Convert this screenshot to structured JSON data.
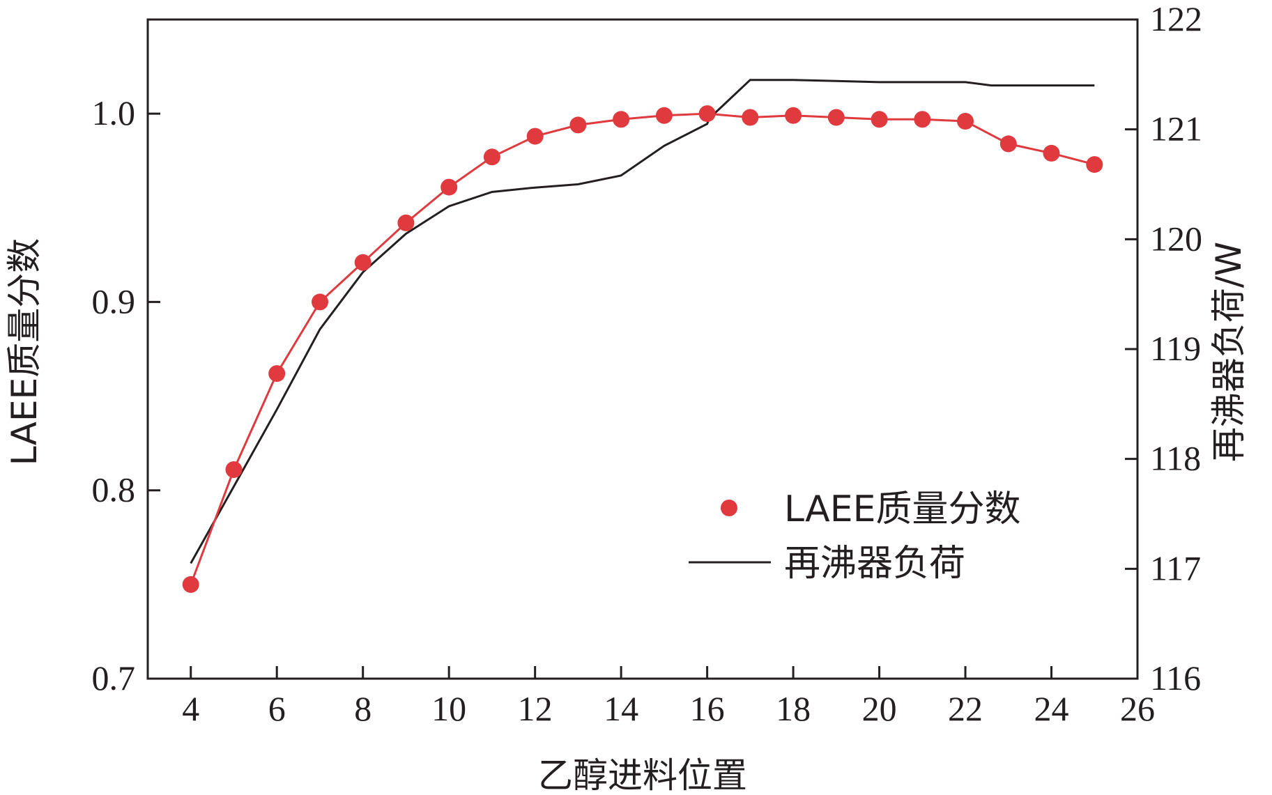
{
  "chart_data": {
    "type": "line",
    "title": "",
    "xlabel": "乙醇进料位置",
    "ylabel_left": "LAEE质量分数",
    "ylabel_right": "再沸器负荷/W",
    "xlim": [
      3,
      26
    ],
    "xticks": [
      4,
      6,
      8,
      10,
      12,
      14,
      16,
      18,
      20,
      22,
      24,
      26
    ],
    "ylim_left": [
      0.7,
      1.05
    ],
    "yticks_left": [
      "0.7",
      "0.8",
      "0.9",
      "1.0"
    ],
    "ylim_right": [
      116,
      122
    ],
    "yticks_right": [
      "116",
      "117",
      "118",
      "119",
      "120",
      "121",
      "122"
    ],
    "grid": false,
    "legend_position": "lower-right",
    "colors": {
      "laee": "#e03a3e",
      "reboiler": "#231f20",
      "axis": "#231f20"
    },
    "series": [
      {
        "name": "LAEE质量分数",
        "axis": "left",
        "style": "markers+line",
        "x": [
          4,
          5,
          6,
          7,
          8,
          9,
          10,
          11,
          12,
          13,
          14,
          15,
          16,
          17,
          18,
          19,
          20,
          21,
          22,
          23,
          24,
          25
        ],
        "y": [
          0.75,
          0.811,
          0.862,
          0.9,
          0.921,
          0.942,
          0.961,
          0.977,
          0.988,
          0.994,
          0.997,
          0.999,
          1.0,
          0.998,
          0.999,
          0.998,
          0.997,
          0.997,
          0.996,
          0.984,
          0.979,
          0.973
        ]
      },
      {
        "name": "再沸器负荷",
        "axis": "right",
        "style": "line",
        "x": [
          4,
          5,
          6,
          7,
          8,
          9,
          10,
          11,
          12,
          13,
          14,
          15,
          16,
          16.05,
          17,
          18,
          19,
          20,
          21,
          22,
          22.6,
          23,
          24,
          25
        ],
        "y": [
          117.05,
          117.75,
          118.45,
          119.18,
          119.7,
          120.05,
          120.3,
          120.43,
          120.47,
          120.5,
          120.58,
          120.85,
          121.05,
          121.1,
          121.45,
          121.45,
          121.44,
          121.43,
          121.43,
          121.43,
          121.4,
          121.4,
          121.4,
          121.4
        ]
      }
    ]
  }
}
